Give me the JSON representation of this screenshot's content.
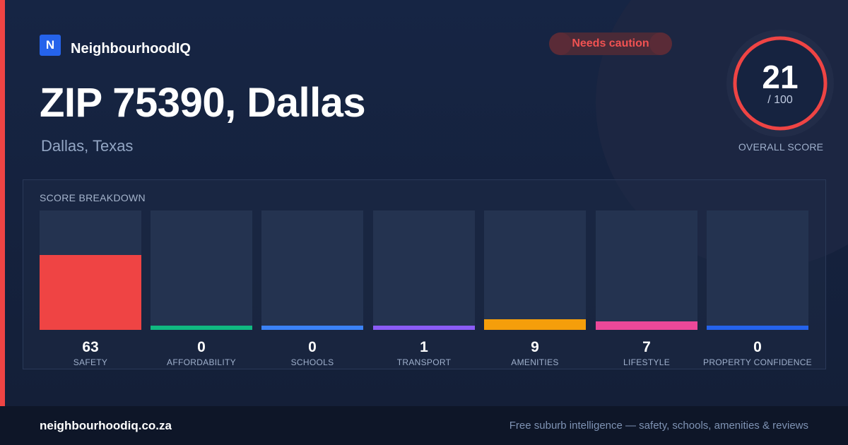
{
  "brand": {
    "logo_letter": "N",
    "name": "NeighbourhoodIQ"
  },
  "badge": {
    "label": "Needs caution"
  },
  "location": {
    "title": "ZIP 75390, Dallas",
    "subtitle": "Dallas, Texas"
  },
  "overall": {
    "score": 21,
    "score_text": "21",
    "max_text": "/ 100",
    "label": "OVERALL SCORE",
    "color": "#ef4444"
  },
  "breakdown": {
    "title": "SCORE BREAKDOWN",
    "items": [
      {
        "value": 63,
        "value_text": "63",
        "label": "SAFETY",
        "color": "#ef4444"
      },
      {
        "value": 0,
        "value_text": "0",
        "label": "AFFORDABILITY",
        "color": "#10b981"
      },
      {
        "value": 0,
        "value_text": "0",
        "label": "SCHOOLS",
        "color": "#3b82f6"
      },
      {
        "value": 1,
        "value_text": "1",
        "label": "TRANSPORT",
        "color": "#8b5cf6"
      },
      {
        "value": 9,
        "value_text": "9",
        "label": "AMENITIES",
        "color": "#f59e0b"
      },
      {
        "value": 7,
        "value_text": "7",
        "label": "LIFESTYLE",
        "color": "#ec4899"
      },
      {
        "value": 0,
        "value_text": "0",
        "label": "PROPERTY CONFIDENCE",
        "color": "#2563eb"
      }
    ]
  },
  "footer": {
    "url": "neighbourhoodiq.co.za",
    "tagline": "Free suburb intelligence — safety, schools, amenities & reviews"
  }
}
